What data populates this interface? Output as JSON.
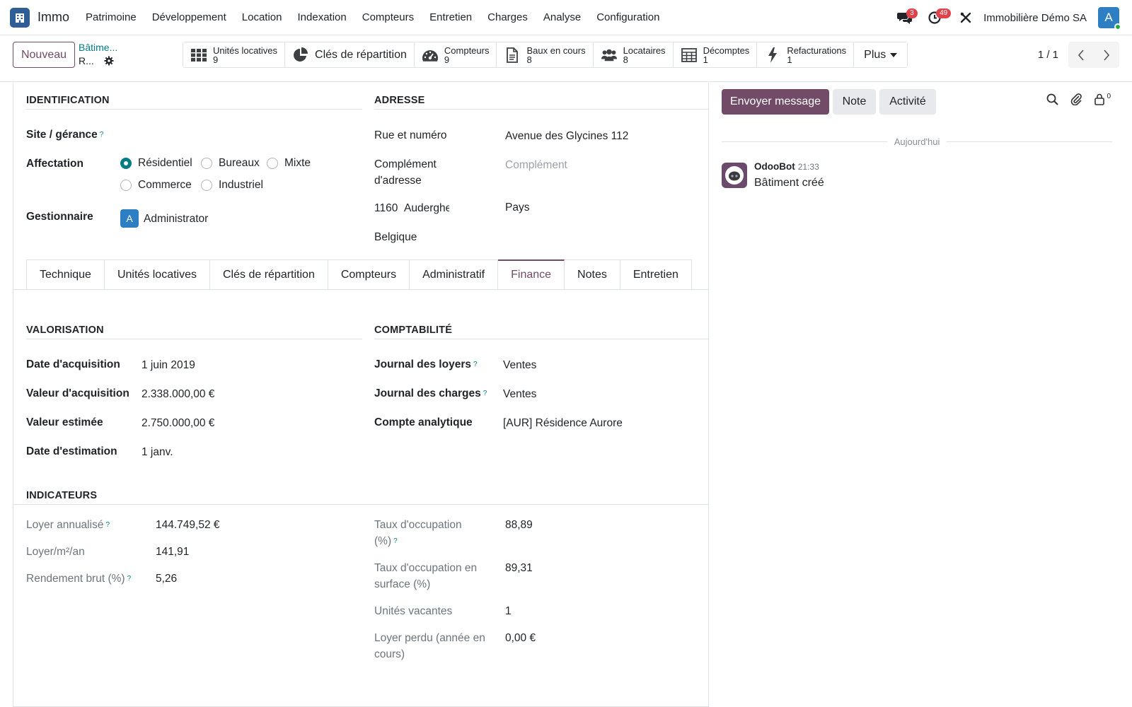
{
  "navbar": {
    "app_name": "Immo",
    "menu": [
      "Patrimoine",
      "Développement",
      "Location",
      "Indexation",
      "Compteurs",
      "Entretien",
      "Charges",
      "Analyse",
      "Configuration"
    ],
    "messages_badge": "3",
    "activities_badge": "49",
    "company": "Immobilière Démo SA",
    "user_initial": "A"
  },
  "control": {
    "new_button": "Nouveau",
    "breadcrumb_parent": "Bâtime...",
    "breadcrumb_current": "R...",
    "smart_buttons": [
      {
        "icon": "grid-icon",
        "label": "Unités locatives",
        "value": "9"
      },
      {
        "icon": "pie-chart-icon",
        "label": "Clés de répartition",
        "value": ""
      },
      {
        "icon": "gauge-icon",
        "label": "Compteurs",
        "value": "9"
      },
      {
        "icon": "document-icon",
        "label": "Baux en cours",
        "value": "8"
      },
      {
        "icon": "users-icon",
        "label": "Locataires",
        "value": "8"
      },
      {
        "icon": "table-icon",
        "label": "Décomptes",
        "value": "1"
      },
      {
        "icon": "bolt-icon",
        "label": "Refacturations",
        "value": "1"
      }
    ],
    "more_label": "Plus",
    "pager": "1 / 1"
  },
  "form": {
    "identification": {
      "title": "IDENTIFICATION",
      "site_label": "Site / gérance",
      "affectation_label": "Affectation",
      "affectation_options": [
        "Résidentiel",
        "Bureaux",
        "Mixte",
        "Commerce",
        "Industriel"
      ],
      "affectation_selected": "Résidentiel",
      "manager_label": "Gestionnaire",
      "manager_initial": "A",
      "manager_value": "Administrator"
    },
    "address": {
      "title": "ADRESSE",
      "street_label": "Rue et numéro",
      "street_value": "Avenue des Glycines 112",
      "complement_label": "Complément d'adresse",
      "complement_placeholder": "Complément",
      "zip": "1160",
      "city": "Auderghem",
      "country_label": "Pays",
      "country_value": "Belgique"
    },
    "tabs": [
      "Technique",
      "Unités locatives",
      "Clés de répartition",
      "Compteurs",
      "Administratif",
      "Finance",
      "Notes",
      "Entretien"
    ],
    "active_tab": "Finance",
    "valorisation": {
      "title": "VALORISATION",
      "fields": [
        {
          "label": "Date d'acquisition",
          "value": "1 juin 2019"
        },
        {
          "label": "Valeur d'acquisition",
          "value": "2.338.000,00 €"
        },
        {
          "label": "Valeur estimée",
          "value": "2.750.000,00 €"
        },
        {
          "label": "Date d'estimation",
          "value": "1 janv."
        }
      ]
    },
    "comptabilite": {
      "title": "COMPTABILITÉ",
      "fields": [
        {
          "label": "Journal des loyers",
          "value": "Ventes"
        },
        {
          "label": "Journal des charges",
          "value": "Ventes"
        },
        {
          "label": "Compte analytique",
          "value": "[AUR] Résidence Aurore"
        }
      ]
    },
    "indicateurs": {
      "title": "INDICATEURS",
      "left": [
        {
          "label": "Loyer annualisé",
          "value": "144.749,52 €"
        },
        {
          "label": "Loyer/m²/an",
          "value": "141,91"
        },
        {
          "label": "Rendement brut (%)",
          "value": "5,26"
        }
      ],
      "right": [
        {
          "label_l1": "Taux d'occupation",
          "label_l2": "(%)",
          "value": "88,89"
        },
        {
          "label_l1": "Taux d'occupation en",
          "label_l2": "surface (%)",
          "value": "89,31"
        },
        {
          "label_l1": "Unités vacantes",
          "label_l2": "",
          "value": "1"
        },
        {
          "label_l1": "Loyer perdu (année en",
          "label_l2": "cours)",
          "value": "0,00 €"
        }
      ]
    }
  },
  "chatter": {
    "send_message": "Envoyer message",
    "note": "Note",
    "activity": "Activité",
    "followers_count": "0",
    "date_separator": "Aujourd'hui",
    "message": {
      "author": "OdooBot",
      "time": "21:33",
      "body": "Bâtiment créé"
    }
  },
  "colors": {
    "brand": "#714b67",
    "accent": "#017e84",
    "app_icon": "#2f5e96",
    "badge": "#e0424b"
  }
}
